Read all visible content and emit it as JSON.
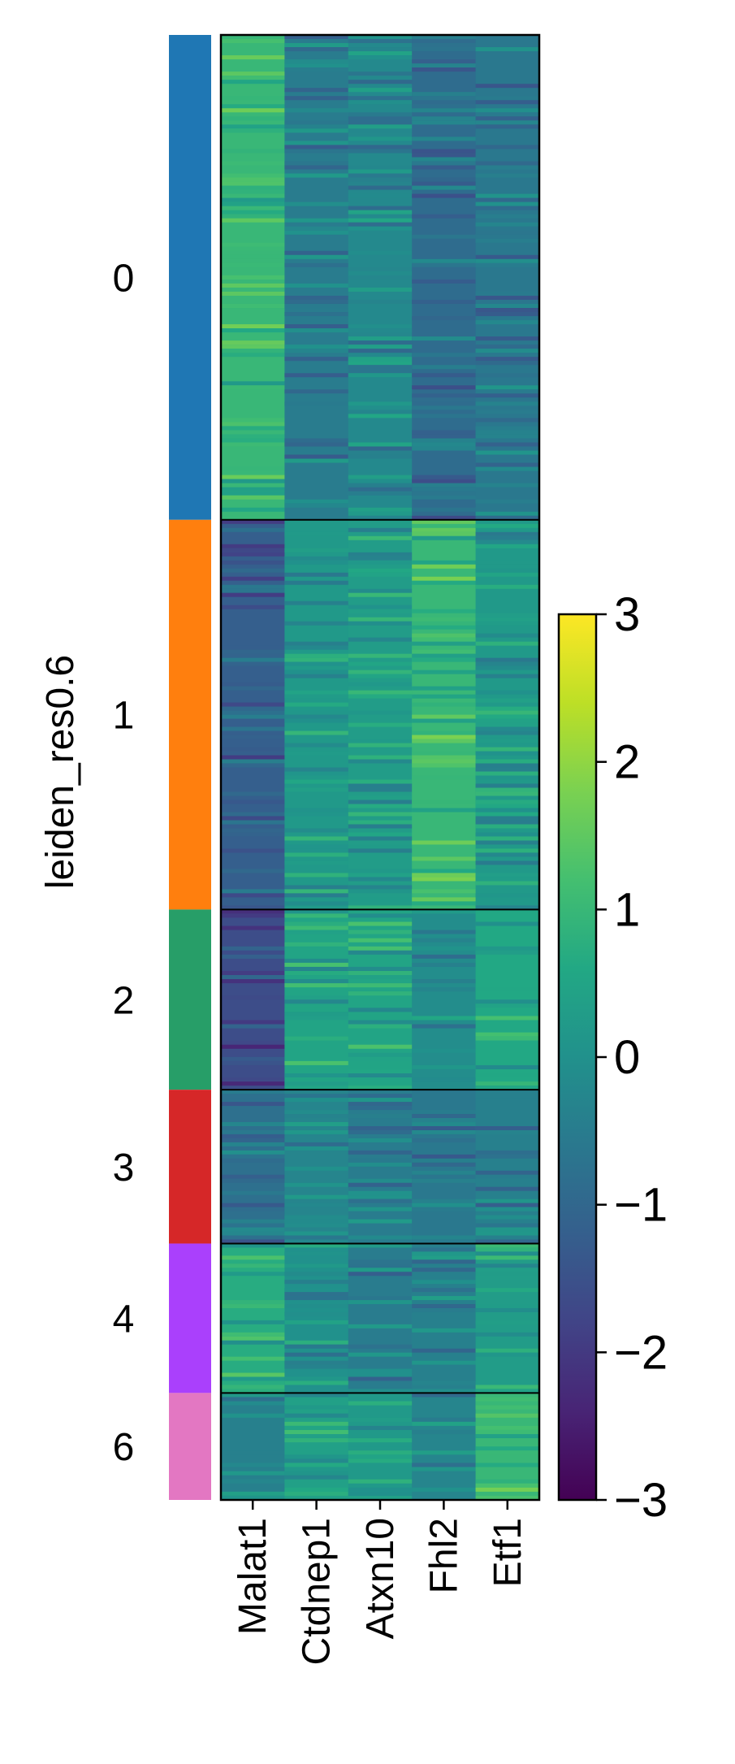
{
  "chart_data": {
    "type": "heatmap",
    "title": "",
    "ylabel": "leiden_res0.6",
    "xlabel": "",
    "genes": [
      "Malat1",
      "Ctdnep1",
      "Atxn10",
      "Fhl2",
      "Etf1"
    ],
    "groups": [
      {
        "label": "0",
        "color": "#1f77b4",
        "fraction": 0.331,
        "mean_values": [
          1.0,
          -0.5,
          -0.2,
          -0.9,
          -0.6
        ]
      },
      {
        "label": "1",
        "color": "#ff7f0e",
        "fraction": 0.266,
        "mean_values": [
          -1.2,
          0.2,
          0.3,
          1.0,
          0.2
        ]
      },
      {
        "label": "2",
        "color": "#279e68",
        "fraction": 0.123,
        "mean_values": [
          -1.6,
          0.5,
          0.5,
          -0.1,
          0.6
        ]
      },
      {
        "label": "3",
        "color": "#d62728",
        "fraction": 0.105,
        "mean_values": [
          -0.8,
          -0.3,
          -0.5,
          -0.6,
          -0.4
        ]
      },
      {
        "label": "4",
        "color": "#aa40fc",
        "fraction": 0.102,
        "mean_values": [
          0.7,
          0.0,
          -0.5,
          -0.4,
          0.3
        ]
      },
      {
        "label": "6",
        "color": "#e377c2",
        "fraction": 0.073,
        "mean_values": [
          -0.4,
          0.4,
          0.2,
          -0.3,
          1.0
        ]
      }
    ],
    "colorbar": {
      "colormap": "viridis",
      "vmin": -3,
      "vmax": 3,
      "ticks": [
        3,
        2,
        1,
        0,
        -1,
        -2,
        -3
      ],
      "tick_labels": [
        "3",
        "2",
        "1",
        "0",
        "−1",
        "−2",
        "−3"
      ]
    }
  }
}
